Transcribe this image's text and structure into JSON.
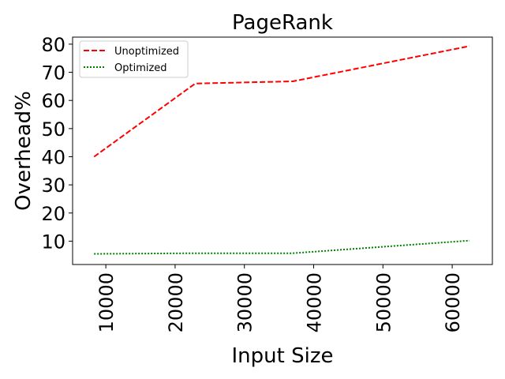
{
  "chart_data": {
    "type": "line",
    "title": "PageRank",
    "xlabel": "Input Size",
    "ylabel": "Overhead%",
    "xlim": [
      5200,
      65800
    ],
    "ylim": [
      1.7,
      82.5
    ],
    "xticks": [
      10000,
      20000,
      30000,
      40000,
      50000,
      60000
    ],
    "yticks": [
      10,
      20,
      30,
      40,
      50,
      60,
      70,
      80
    ],
    "grid": false,
    "legend_position": "top-left",
    "series": [
      {
        "name": "Unoptimized",
        "color": "#ff0000",
        "style": "dashed",
        "x": [
          8300,
          22900,
          37000,
          62500
        ],
        "y": [
          40,
          66,
          66.8,
          79.3
        ]
      },
      {
        "name": "Optimized",
        "color": "#008000",
        "style": "dotted",
        "x": [
          8300,
          22900,
          37000,
          62500
        ],
        "y": [
          5.5,
          5.7,
          5.7,
          10.2
        ]
      }
    ]
  }
}
